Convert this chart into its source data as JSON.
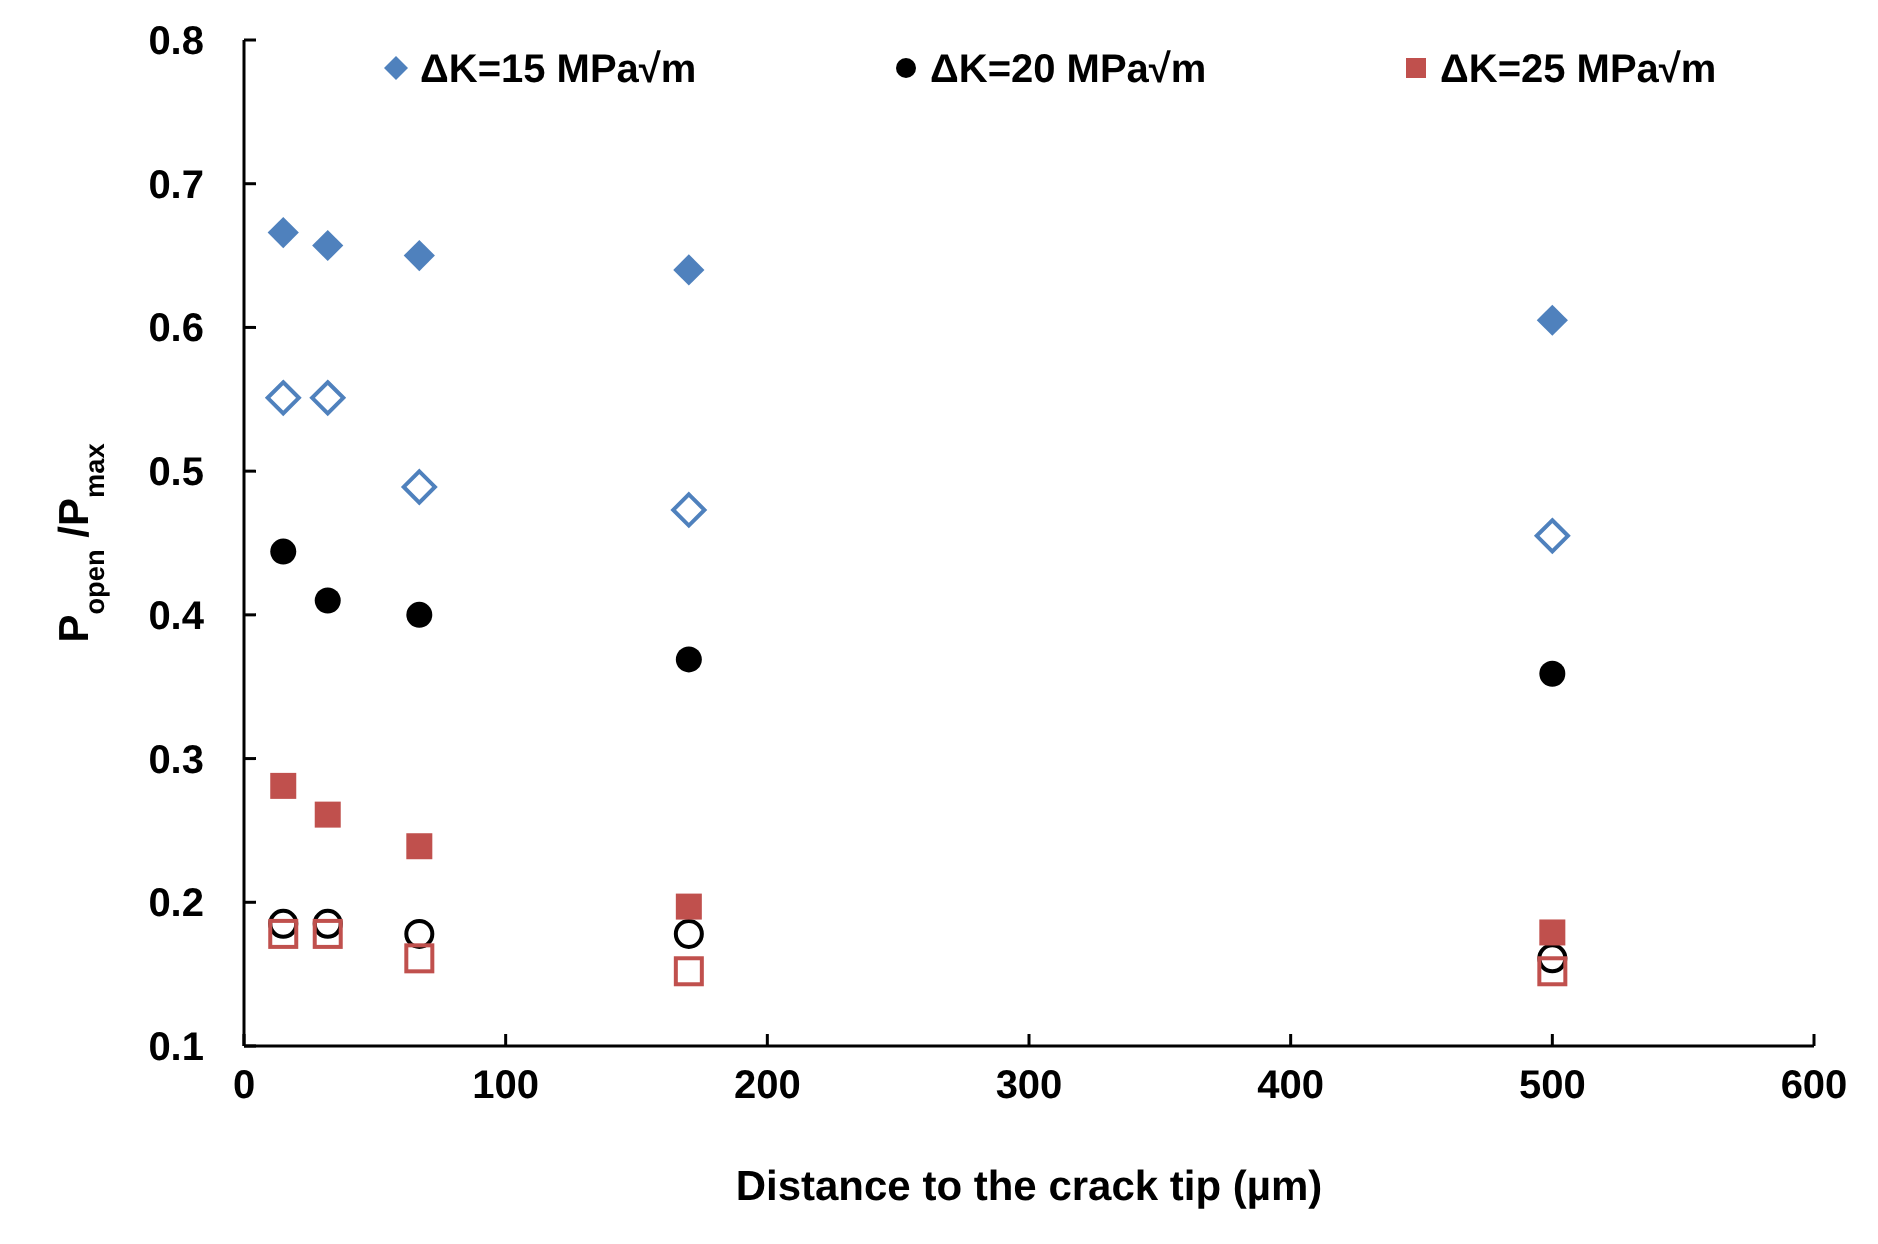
{
  "chart_data": {
    "type": "scatter",
    "xlabel": "Distance to the crack tip (µm)",
    "ylabel": "P$_{open}$ /P$_{max}$",
    "x": [
      15,
      32,
      67,
      170,
      500
    ],
    "series": [
      {
        "name": "ΔK=15 MPa√m",
        "color": "#4f81bd",
        "marker": "diamond",
        "values": [
          0.666,
          0.657,
          0.65,
          0.64,
          0.605
        ]
      },
      {
        "color": "#4f81bd",
        "marker": "diamond",
        "values": [
          0.551,
          0.551,
          0.489,
          0.473,
          0.455
        ]
      },
      {
        "name": "ΔK=20 MPa√m",
        "color": "#000000",
        "marker": "circle",
        "values": [
          0.444,
          0.41,
          0.4,
          0.369,
          0.359
        ]
      },
      {
        "color": "#000000",
        "marker": "circle",
        "values": [
          0.185,
          0.185,
          0.178,
          0.178,
          0.161
        ]
      },
      {
        "name": "ΔK=25 MPa√m",
        "color": "#c0504d",
        "marker": "square",
        "values": [
          0.281,
          0.261,
          0.239,
          0.197,
          0.179
        ]
      },
      {
        "color": "#c0504d",
        "marker": "square",
        "values": [
          0.178,
          0.178,
          0.161,
          0.152,
          0.152
        ]
      }
    ],
    "xlim": [
      0,
      600
    ],
    "xticks": [
      0,
      100,
      200,
      300,
      400,
      500,
      600
    ],
    "ylim": [
      0.1,
      0.8
    ],
    "yticks": [
      0.1,
      0.2,
      0.3,
      0.4,
      0.5,
      0.6,
      0.7,
      0.8
    ],
    "grid": false,
    "legend": "top"
  }
}
